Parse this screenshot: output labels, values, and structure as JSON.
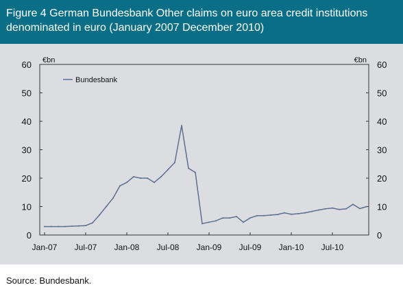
{
  "header": {
    "title": "Figure 4 German Bundesbank Other claims on euro area credit institutions denominated in euro (January 2007 December 2010)"
  },
  "footer": {
    "source": "Source: Bundesbank."
  },
  "colors": {
    "header_bg": "#0a6f86",
    "panel_bg": "#dcdde0",
    "line": "#5b6f92"
  },
  "chart_data": {
    "type": "line",
    "title": "",
    "xlabel": "",
    "ylabel_left": "€bn",
    "ylabel_right": "€bn",
    "ylim": [
      0,
      60
    ],
    "yticks": [
      0,
      10,
      20,
      30,
      40,
      50,
      60
    ],
    "grid": false,
    "legend": {
      "placement": "top-left"
    },
    "x_tick_labels": [
      "Jan-07",
      "Jul-07",
      "Jan-08",
      "Jul-08",
      "Jan-09",
      "Jul-09",
      "Jan-10",
      "Jul-10"
    ],
    "x_tick_months": [
      "2007-01",
      "2007-07",
      "2008-01",
      "2008-07",
      "2009-01",
      "2009-07",
      "2010-01",
      "2010-07"
    ],
    "x": [
      "2007-01",
      "2007-02",
      "2007-03",
      "2007-04",
      "2007-05",
      "2007-06",
      "2007-07",
      "2007-08",
      "2007-09",
      "2007-10",
      "2007-11",
      "2007-12",
      "2008-01",
      "2008-02",
      "2008-03",
      "2008-04",
      "2008-05",
      "2008-06",
      "2008-07",
      "2008-08",
      "2008-09",
      "2008-10",
      "2008-11",
      "2008-12",
      "2009-01",
      "2009-02",
      "2009-03",
      "2009-04",
      "2009-05",
      "2009-06",
      "2009-07",
      "2009-08",
      "2009-09",
      "2009-10",
      "2009-11",
      "2009-12",
      "2010-01",
      "2010-02",
      "2010-03",
      "2010-04",
      "2010-05",
      "2010-06",
      "2010-07",
      "2010-08",
      "2010-09",
      "2010-10",
      "2010-11",
      "2010-12"
    ],
    "series": [
      {
        "name": "Bundesbank",
        "values": [
          3.0,
          3.0,
          3.0,
          3.0,
          3.1,
          3.2,
          3.3,
          4.3,
          7.0,
          10.0,
          13.0,
          17.3,
          18.5,
          20.5,
          20.0,
          20.0,
          18.5,
          20.5,
          23.0,
          25.5,
          38.5,
          23.5,
          22.0,
          4.0,
          4.5,
          5.0,
          6.0,
          6.0,
          6.5,
          4.5,
          6.0,
          6.8,
          6.8,
          7.0,
          7.2,
          7.8,
          7.3,
          7.5,
          7.8,
          8.3,
          8.8,
          9.2,
          9.5,
          9.0,
          9.2,
          10.8,
          9.3,
          10.0
        ]
      }
    ]
  }
}
